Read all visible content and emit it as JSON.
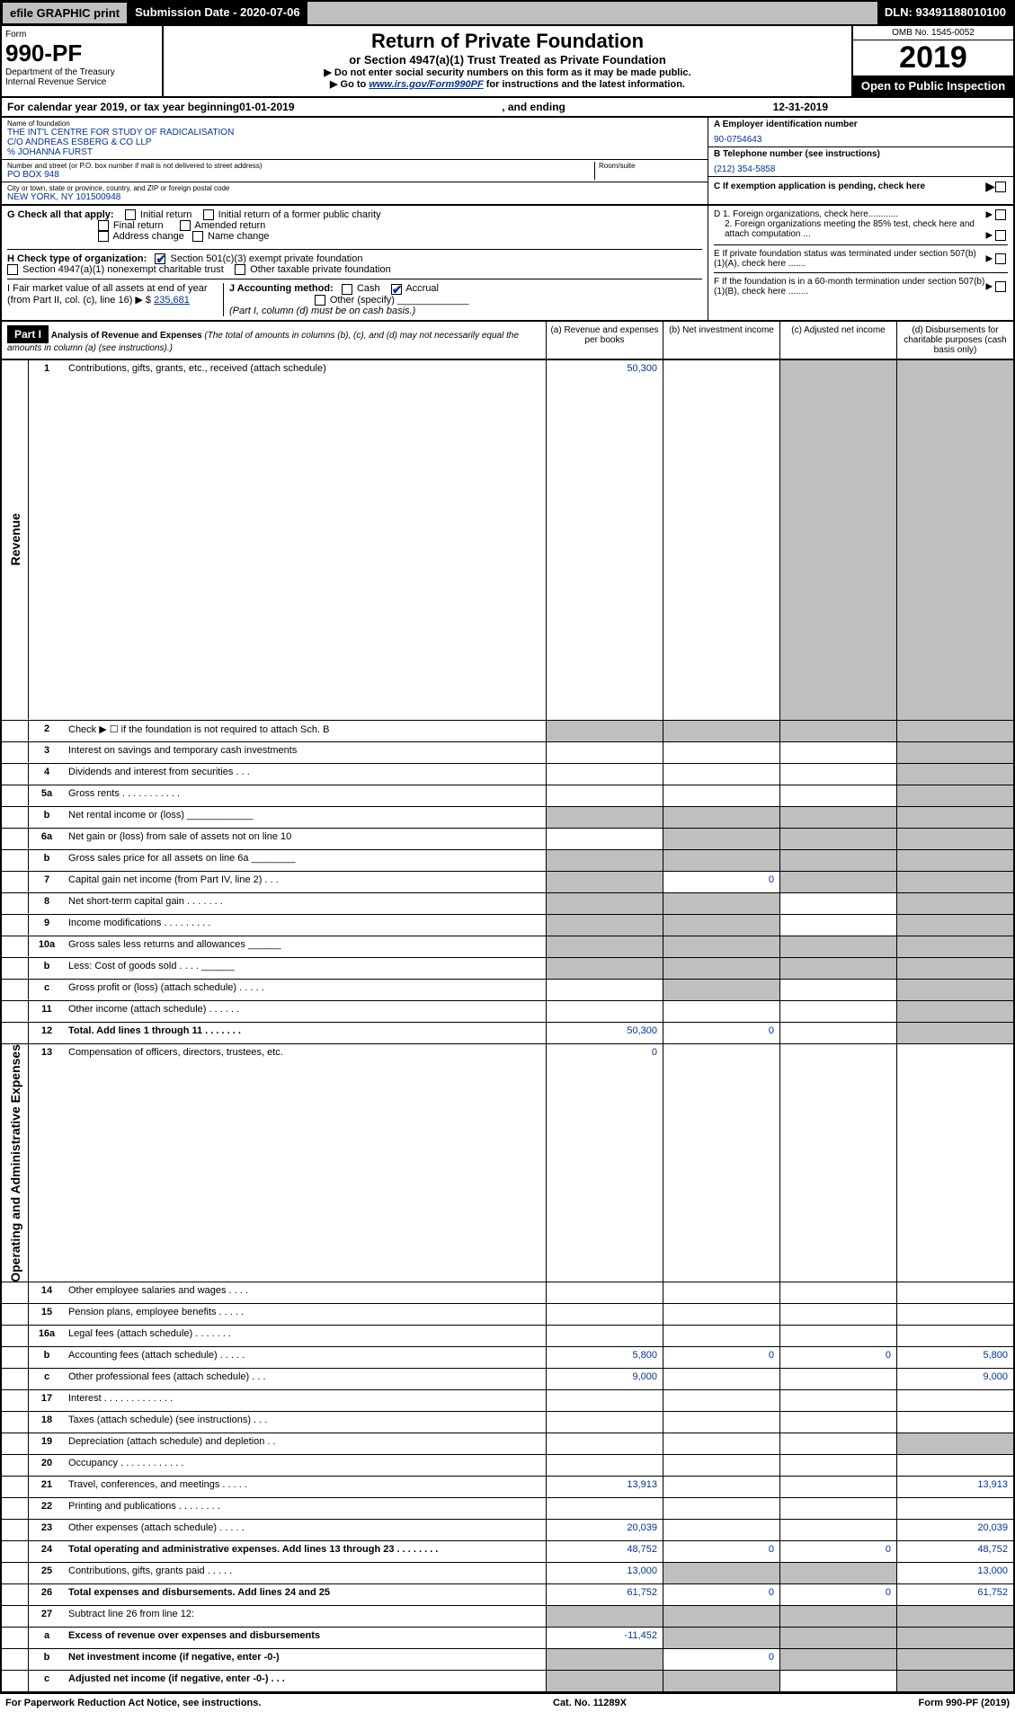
{
  "topbar": {
    "efile": "efile GRAPHIC print",
    "submission": "Submission Date - 2020-07-06",
    "dln": "DLN: 93491188010100"
  },
  "header": {
    "form_word": "Form",
    "form_no": "990-PF",
    "dept": "Department of the Treasury",
    "irs": "Internal Revenue Service",
    "title": "Return of Private Foundation",
    "subtitle": "or Section 4947(a)(1) Trust Treated as Private Foundation",
    "arrow1": "▶ Do not enter social security numbers on this form as it may be made public.",
    "arrow2_pre": "▶ Go to ",
    "arrow2_link": "www.irs.gov/Form990PF",
    "arrow2_post": " for instructions and the latest information.",
    "omb": "OMB No. 1545-0052",
    "year": "2019",
    "inspect": "Open to Public Inspection"
  },
  "calyear": {
    "pre": "For calendar year 2019, or tax year beginning ",
    "begin": "01-01-2019",
    "mid": " , and ending ",
    "end": "12-31-2019"
  },
  "info": {
    "name_lbl": "Name of foundation",
    "name1": "THE INT'L CENTRE FOR STUDY OF RADICALISATION",
    "name2": "C/O ANDREAS ESBERG & CO LLP",
    "name3": "% JOHANNA FURST",
    "addr_lbl": "Number and street (or P.O. box number if mail is not delivered to street address)",
    "addr": "PO BOX 948",
    "room_lbl": "Room/suite",
    "city_lbl": "City or town, state or province, country, and ZIP or foreign postal code",
    "city": "NEW YORK, NY  101500948",
    "a_lbl": "A Employer identification number",
    "a_val": "90-0754643",
    "b_lbl": "B Telephone number (see instructions)",
    "b_val": "(212) 354-5858",
    "c_lbl": "C If exemption application is pending, check here"
  },
  "checks": {
    "g_lbl": "G Check all that apply:",
    "g_opts": [
      "Initial return",
      "Initial return of a former public charity",
      "Final return",
      "Amended return",
      "Address change",
      "Name change"
    ],
    "h_lbl": "H Check type of organization:",
    "h1": "Section 501(c)(3) exempt private foundation",
    "h2": "Section 4947(a)(1) nonexempt charitable trust",
    "h3": "Other taxable private foundation",
    "i_lbl": "I Fair market value of all assets at end of year (from Part II, col. (c), line 16) ▶ $",
    "i_val": "235,681",
    "j_lbl": "J Accounting method:",
    "j1": "Cash",
    "j2": "Accrual",
    "j3": "Other (specify)",
    "j_note": "(Part I, column (d) must be on cash basis.)",
    "d1": "D 1. Foreign organizations, check here............",
    "d2": "2. Foreign organizations meeting the 85% test, check here and attach computation ...",
    "e": "E  If private foundation status was terminated under section 507(b)(1)(A), check here .......",
    "f": "F  If the foundation is in a 60-month termination under section 507(b)(1)(B), check here ........"
  },
  "part1": {
    "label": "Part I",
    "title": "Analysis of Revenue and Expenses",
    "note": " (The total of amounts in columns (b), (c), and (d) may not necessarily equal the amounts in column (a) (see instructions).)",
    "cols": {
      "a": "(a) Revenue and expenses per books",
      "b": "(b) Net investment income",
      "c": "(c) Adjusted net income",
      "d": "(d) Disbursements for charitable purposes (cash basis only)"
    }
  },
  "sections": {
    "revenue": "Revenue",
    "expenses": "Operating and Administrative Expenses"
  },
  "rows": [
    {
      "n": "1",
      "l": "Contributions, gifts, grants, etc., received (attach schedule)",
      "a": "50,300",
      "b": "",
      "c": "sh",
      "d": "sh"
    },
    {
      "n": "2",
      "l": "Check ▶ ☐ if the foundation is not required to attach Sch. B",
      "note": true
    },
    {
      "n": "3",
      "l": "Interest on savings and temporary cash investments",
      "a": "",
      "b": "",
      "c": "",
      "d": "sh"
    },
    {
      "n": "4",
      "l": "Dividends and interest from securities   .   .   .",
      "a": "",
      "b": "",
      "c": "",
      "d": "sh"
    },
    {
      "n": "5a",
      "l": "Gross rents   .   .   .   .   .   .   .   .   .   .   .",
      "a": "",
      "b": "",
      "c": "",
      "d": "sh"
    },
    {
      "n": "b",
      "l": "Net rental income or (loss) ____________",
      "a": "sh",
      "b": "sh",
      "c": "sh",
      "d": "sh"
    },
    {
      "n": "6a",
      "l": "Net gain or (loss) from sale of assets not on line 10",
      "a": "",
      "b": "sh",
      "c": "sh",
      "d": "sh"
    },
    {
      "n": "b",
      "l": "Gross sales price for all assets on line 6a ________",
      "a": "sh",
      "b": "sh",
      "c": "sh",
      "d": "sh"
    },
    {
      "n": "7",
      "l": "Capital gain net income (from Part IV, line 2)   .   .   .",
      "a": "sh",
      "b": "0",
      "c": "sh",
      "d": "sh"
    },
    {
      "n": "8",
      "l": "Net short-term capital gain   .   .   .   .   .   .   .",
      "a": "sh",
      "b": "sh",
      "c": "",
      "d": "sh"
    },
    {
      "n": "9",
      "l": "Income modifications   .   .   .   .   .   .   .   .   .",
      "a": "sh",
      "b": "sh",
      "c": "",
      "d": "sh"
    },
    {
      "n": "10a",
      "l": "Gross sales less returns and allowances  ______",
      "a": "sh",
      "b": "sh",
      "c": "sh",
      "d": "sh"
    },
    {
      "n": "b",
      "l": "Less: Cost of goods sold   .   .   .   .  ______",
      "a": "sh",
      "b": "sh",
      "c": "sh",
      "d": "sh"
    },
    {
      "n": "c",
      "l": "Gross profit or (loss) (attach schedule)   .   .   .   .   .",
      "a": "",
      "b": "sh",
      "c": "",
      "d": "sh"
    },
    {
      "n": "11",
      "l": "Other income (attach schedule)   .   .   .   .   .   .",
      "a": "",
      "b": "",
      "c": "",
      "d": "sh"
    },
    {
      "n": "12",
      "l": "Total. Add lines 1 through 11   .   .   .   .   .   .   .",
      "bold": true,
      "a": "50,300",
      "b": "0",
      "c": "",
      "d": "sh"
    },
    {
      "n": "13",
      "l": "Compensation of officers, directors, trustees, etc.",
      "a": "0",
      "b": "",
      "c": "",
      "d": ""
    },
    {
      "n": "14",
      "l": "Other employee salaries and wages   .   .   .   .",
      "a": "",
      "b": "",
      "c": "",
      "d": ""
    },
    {
      "n": "15",
      "l": "Pension plans, employee benefits   .   .   .   .   .",
      "a": "",
      "b": "",
      "c": "",
      "d": ""
    },
    {
      "n": "16a",
      "l": "Legal fees (attach schedule)   .   .   .   .   .   .   .",
      "a": "",
      "b": "",
      "c": "",
      "d": ""
    },
    {
      "n": "b",
      "l": "Accounting fees (attach schedule)   .   .   .   .   .",
      "a": "5,800",
      "b": "0",
      "c": "0",
      "d": "5,800"
    },
    {
      "n": "c",
      "l": "Other professional fees (attach schedule)   .   .   .",
      "a": "9,000",
      "b": "",
      "c": "",
      "d": "9,000"
    },
    {
      "n": "17",
      "l": "Interest   .   .   .   .   .   .   .   .   .   .   .   .   .",
      "a": "",
      "b": "",
      "c": "",
      "d": ""
    },
    {
      "n": "18",
      "l": "Taxes (attach schedule) (see instructions)   .   .   .",
      "a": "",
      "b": "",
      "c": "",
      "d": ""
    },
    {
      "n": "19",
      "l": "Depreciation (attach schedule) and depletion   .   .",
      "a": "",
      "b": "",
      "c": "",
      "d": "sh"
    },
    {
      "n": "20",
      "l": "Occupancy   .   .   .   .   .   .   .   .   .   .   .   .",
      "a": "",
      "b": "",
      "c": "",
      "d": ""
    },
    {
      "n": "21",
      "l": "Travel, conferences, and meetings   .   .   .   .   .",
      "a": "13,913",
      "b": "",
      "c": "",
      "d": "13,913"
    },
    {
      "n": "22",
      "l": "Printing and publications   .   .   .   .   .   .   .   .",
      "a": "",
      "b": "",
      "c": "",
      "d": ""
    },
    {
      "n": "23",
      "l": "Other expenses (attach schedule)   .   .   .   .   .",
      "a": "20,039",
      "b": "",
      "c": "",
      "d": "20,039"
    },
    {
      "n": "24",
      "l": "Total operating and administrative expenses. Add lines 13 through 23   .   .   .   .   .   .   .   .",
      "bold": true,
      "a": "48,752",
      "b": "0",
      "c": "0",
      "d": "48,752"
    },
    {
      "n": "25",
      "l": "Contributions, gifts, grants paid   .   .   .   .   .",
      "a": "13,000",
      "b": "sh",
      "c": "sh",
      "d": "13,000"
    },
    {
      "n": "26",
      "l": "Total expenses and disbursements. Add lines 24 and 25",
      "bold": true,
      "a": "61,752",
      "b": "0",
      "c": "0",
      "d": "61,752"
    },
    {
      "n": "27",
      "l": "Subtract line 26 from line 12:",
      "a": "sh",
      "b": "sh",
      "c": "sh",
      "d": "sh"
    },
    {
      "n": "a",
      "l": "Excess of revenue over expenses and disbursements",
      "bold": true,
      "a": "-11,452",
      "b": "sh",
      "c": "sh",
      "d": "sh"
    },
    {
      "n": "b",
      "l": "Net investment income (if negative, enter -0-)",
      "bold": true,
      "a": "sh",
      "b": "0",
      "c": "sh",
      "d": "sh"
    },
    {
      "n": "c",
      "l": "Adjusted net income (if negative, enter -0-)   .   .   .",
      "bold": true,
      "a": "sh",
      "b": "sh",
      "c": "",
      "d": "sh"
    }
  ],
  "footer": {
    "left": "For Paperwork Reduction Act Notice, see instructions.",
    "mid": "Cat. No. 11289X",
    "right": "Form 990-PF (2019)"
  }
}
